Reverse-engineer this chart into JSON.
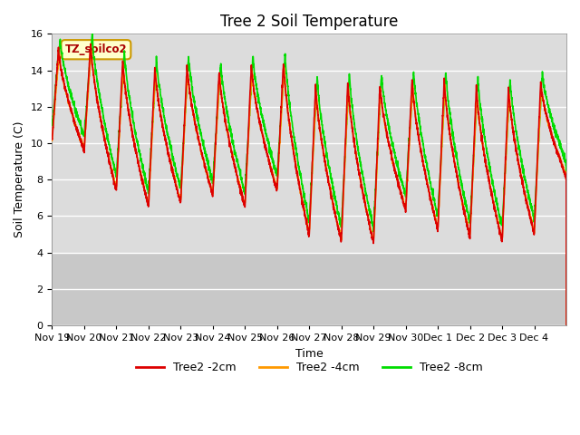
{
  "title": "Tree 2 Soil Temperature",
  "xlabel": "Time",
  "ylabel": "Soil Temperature (C)",
  "ylim": [
    0,
    16
  ],
  "yticks": [
    0,
    2,
    4,
    6,
    8,
    10,
    12,
    14,
    16
  ],
  "x_labels": [
    "Nov 19",
    "Nov 20",
    "Nov 21",
    "Nov 22",
    "Nov 23",
    "Nov 24",
    "Nov 25",
    "Nov 26",
    "Nov 27",
    "Nov 28",
    "Nov 29",
    "Nov 30",
    "Dec 1",
    "Dec 2",
    "Dec 3",
    "Dec 4"
  ],
  "color_2cm": "#dd0000",
  "color_4cm": "#ff9900",
  "color_8cm": "#00dd00",
  "legend_labels": [
    "Tree2 -2cm",
    "Tree2 -4cm",
    "Tree2 -8cm"
  ],
  "annotation_text": "TZ_soilco2",
  "plot_bg_color": "#dcdcdc",
  "lower_bg_color": "#c8c8c8",
  "lower_threshold": 4.0,
  "title_fontsize": 12,
  "axis_label_fontsize": 9,
  "tick_fontsize": 8,
  "legend_fontsize": 9,
  "linewidth": 1.2
}
